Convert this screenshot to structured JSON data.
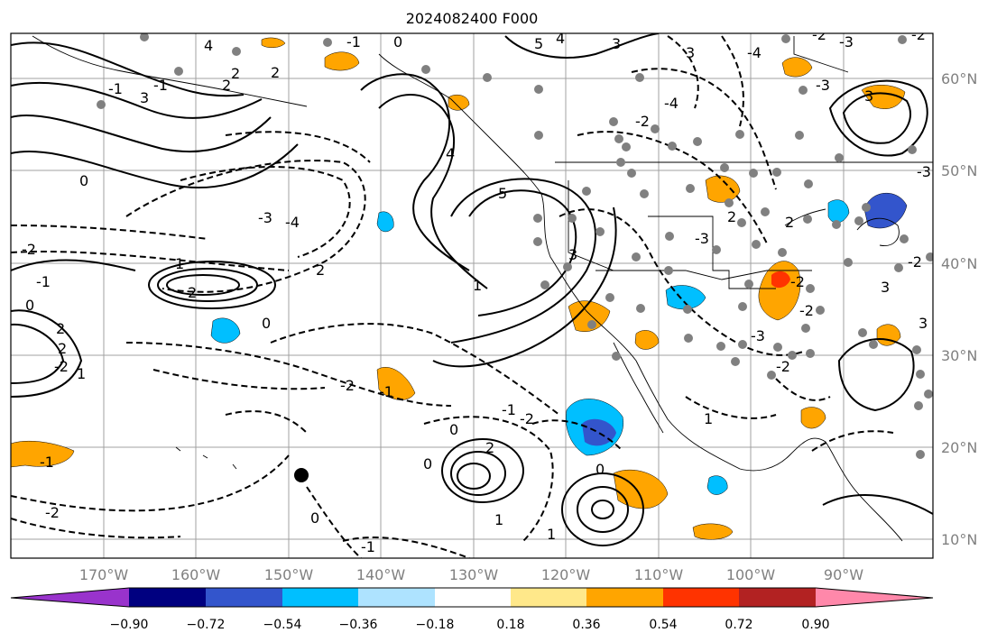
{
  "title": "2024082400 F000",
  "map": {
    "lon_ticks": [
      "170°W",
      "160°W",
      "150°W",
      "140°W",
      "130°W",
      "120°W",
      "110°W",
      "100°W",
      "90°W"
    ],
    "lat_ticks": [
      "60°N",
      "50°N",
      "40°N",
      "30°N",
      "20°N",
      "10°N"
    ],
    "contour_labels": [
      "2",
      "-4",
      "5",
      "-3",
      "4",
      "3",
      "2",
      "3",
      "-4",
      "2",
      "-2",
      "0",
      "-3",
      "4",
      "-1",
      "2",
      "3",
      "3",
      "3",
      "4",
      "5",
      "2",
      "-3",
      "0",
      "1",
      "2",
      "3",
      "-4",
      "-2",
      "1",
      "0",
      "-2",
      "2",
      "2",
      "2",
      "-1",
      "-1",
      "-2",
      "-2",
      "1",
      "0",
      "1",
      "-2",
      "3",
      "-2",
      "-2",
      "-2",
      "1",
      "-3",
      "-2",
      "-2",
      "-1",
      "0",
      "-1",
      "-2",
      "0",
      "-1",
      "-1",
      "0",
      "-1",
      "2",
      "1",
      "0",
      "-3",
      "-3"
    ]
  },
  "colorbar": {
    "colors": [
      "#9933cc",
      "#000080",
      "#3355cc",
      "#00bfff",
      "#aee3ff",
      "#ffffff",
      "#ffe88a",
      "#ffa500",
      "#ff3300",
      "#b22222",
      "#ff88aa"
    ],
    "tick_labels": [
      "−0.90",
      "−0.72",
      "−0.54",
      "−0.36",
      "−0.18",
      "0.18",
      "0.36",
      "0.54",
      "0.72",
      "0.90"
    ]
  },
  "colors": {
    "tick": "#808080",
    "station": "#808080"
  }
}
